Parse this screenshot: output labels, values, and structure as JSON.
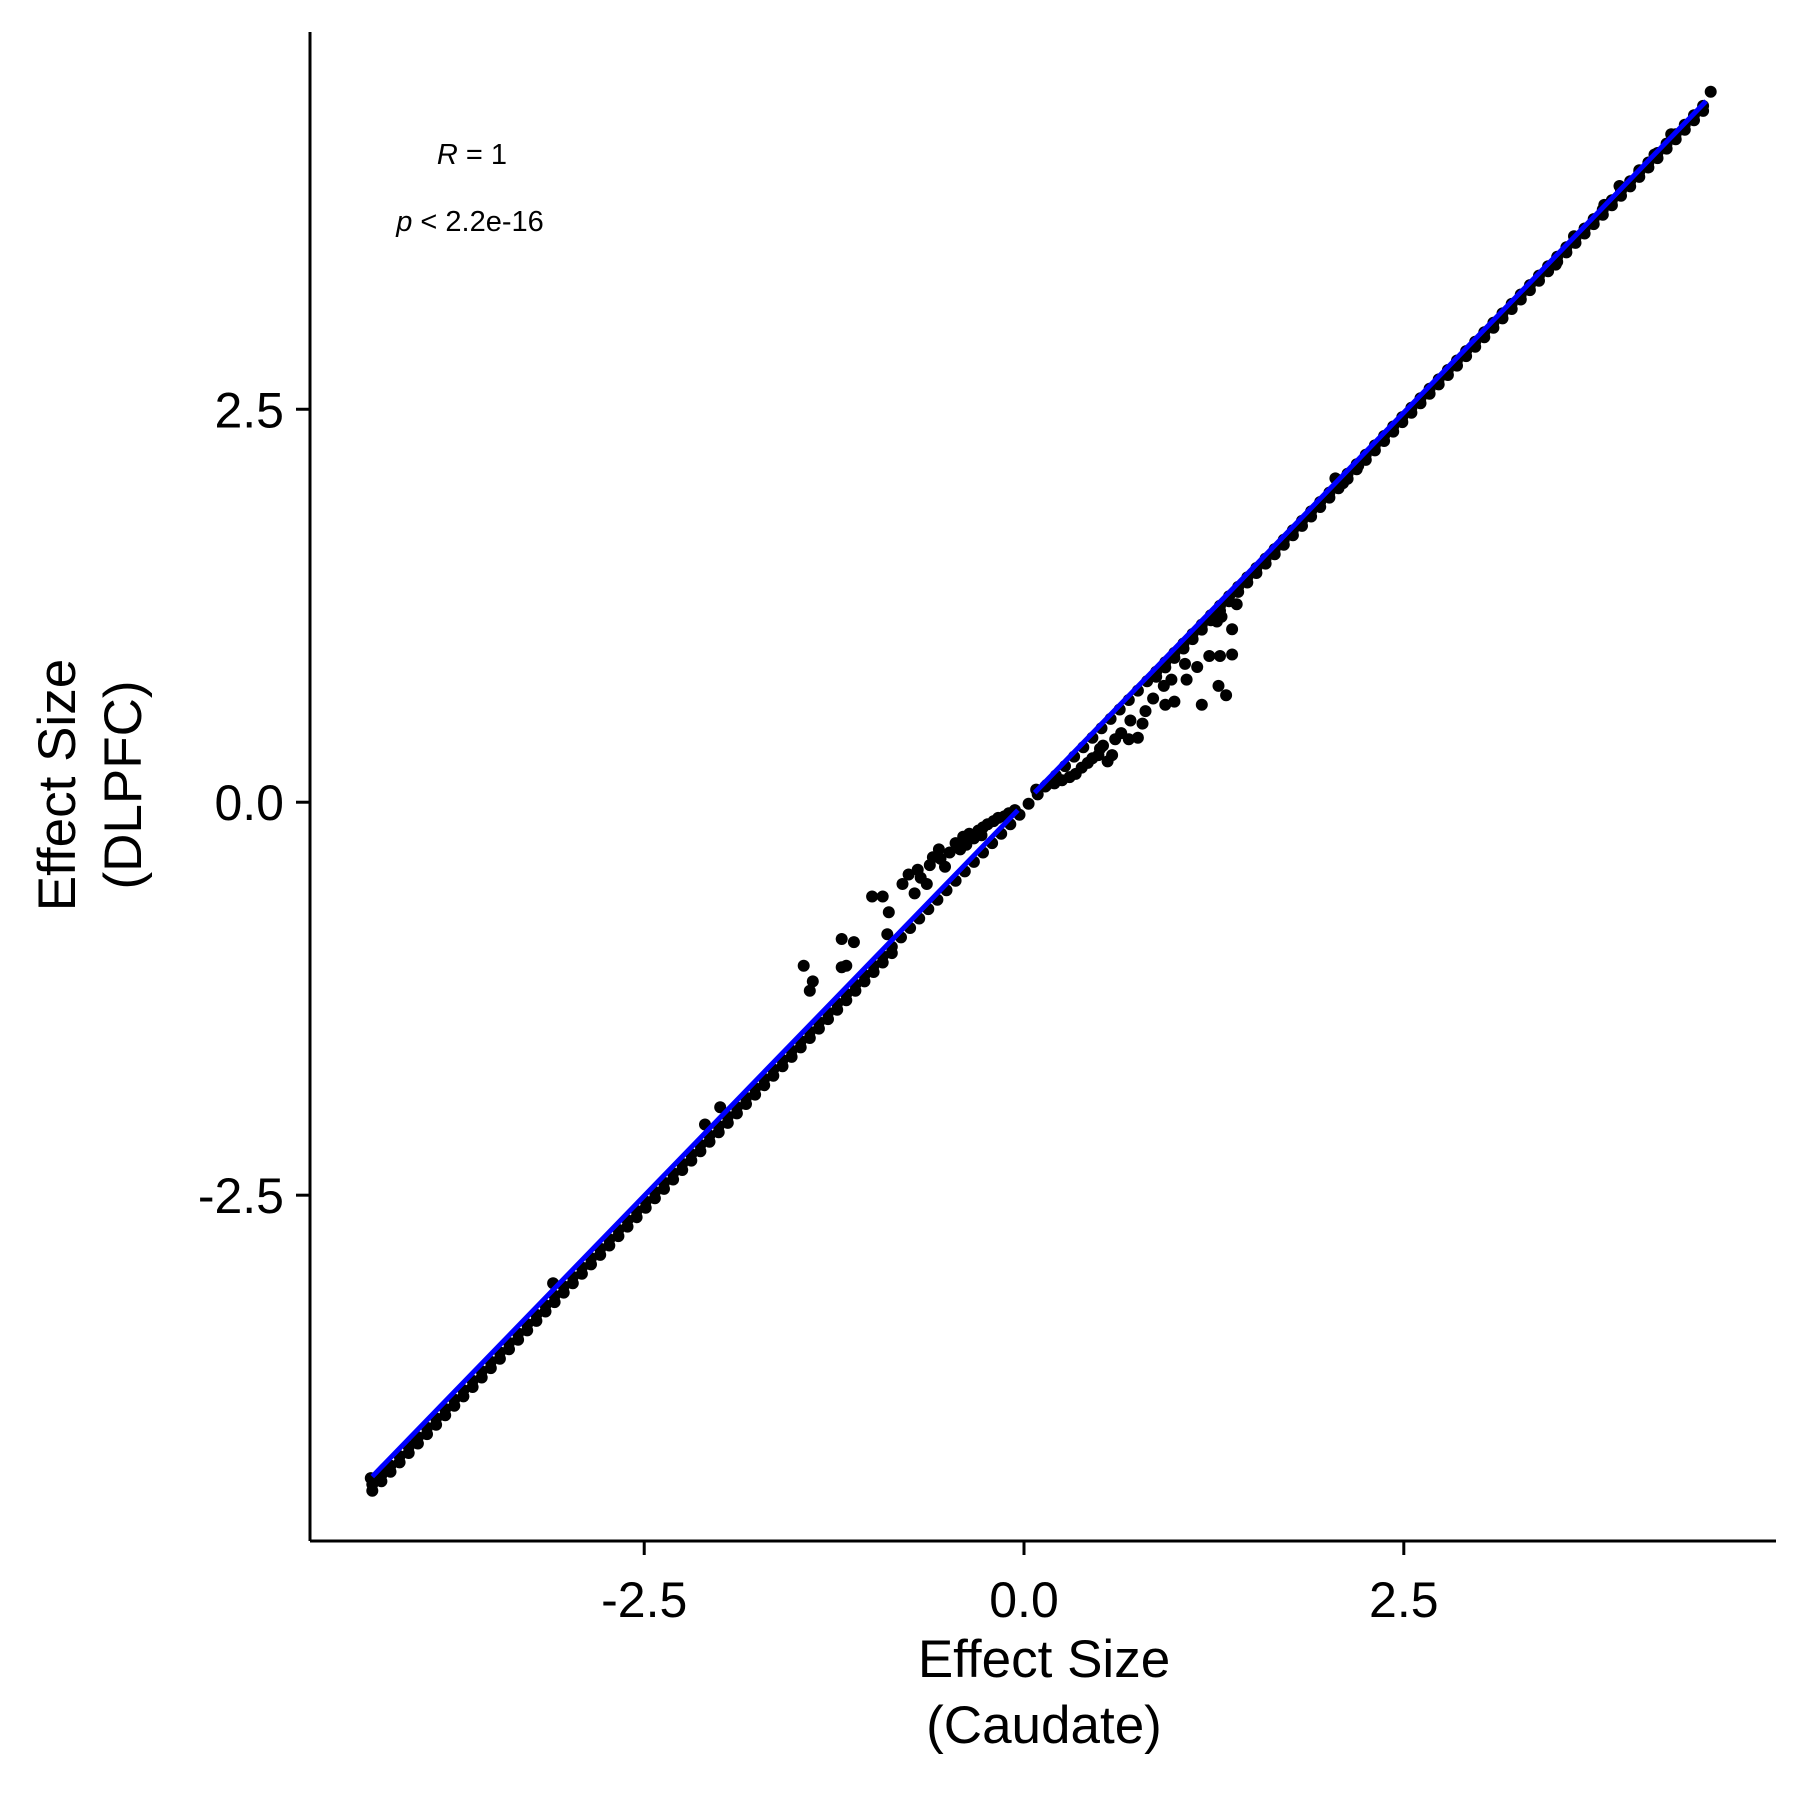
{
  "chart_data": {
    "type": "scatter",
    "xlabel_lines": [
      "Effect Size",
      "(Caudate)"
    ],
    "ylabel_lines": [
      "Effect Size",
      "(DLPFC)"
    ],
    "xlim": [
      -4.7,
      4.95
    ],
    "ylim": [
      -4.7,
      4.9
    ],
    "xticks": [
      -2.5,
      0.0,
      2.5
    ],
    "xtick_labels": [
      "-2.5",
      "0.0",
      "2.5"
    ],
    "yticks": [
      -2.5,
      0.0,
      2.5
    ],
    "ytick_labels": [
      "-2.5",
      "0.0",
      "2.5"
    ],
    "grid": false,
    "annotation": {
      "r_symbol": "R",
      "r_text": " = 1",
      "p_symbol": "p",
      "p_text": " < 2.2e-16"
    },
    "fit_line": {
      "color": "#0000ff",
      "segments": [
        {
          "x": [
            -4.29,
            -0.04
          ],
          "y": [
            -4.29,
            -0.05
          ]
        },
        {
          "x": [
            0.07,
            4.49
          ],
          "y": [
            0.06,
            4.46
          ]
        }
      ]
    },
    "main_band": {
      "x_start": -4.29,
      "x_end": 4.5,
      "step": 0.06,
      "gap": [
        -0.85,
        0.85
      ],
      "offset_below": 0.05,
      "offset_above": 0.04
    },
    "series": [
      {
        "point_color": "#000000",
        "points": [
          {
            "x": -1.45,
            "y": -1.04
          },
          {
            "x": -1.39,
            "y": -1.14
          },
          {
            "x": -1.41,
            "y": -1.2
          },
          {
            "x": -1.2,
            "y": -0.87
          },
          {
            "x": -1.12,
            "y": -0.89
          },
          {
            "x": -1.17,
            "y": -1.04
          },
          {
            "x": -1.2,
            "y": -1.05
          },
          {
            "x": -1.0,
            "y": -0.6
          },
          {
            "x": -0.93,
            "y": -0.6
          },
          {
            "x": -0.89,
            "y": -0.7
          },
          {
            "x": -0.9,
            "y": -0.84
          },
          {
            "x": -0.8,
            "y": -0.52
          },
          {
            "x": -0.76,
            "y": -0.46
          },
          {
            "x": -0.7,
            "y": -0.43
          },
          {
            "x": -0.72,
            "y": -0.58
          },
          {
            "x": -0.64,
            "y": -0.52
          },
          {
            "x": -0.6,
            "y": -0.35
          },
          {
            "x": -0.56,
            "y": -0.3
          },
          {
            "x": -0.52,
            "y": -0.41
          },
          {
            "x": -0.49,
            "y": -0.32
          },
          {
            "x": -0.45,
            "y": -0.26
          },
          {
            "x": -0.42,
            "y": -0.3
          },
          {
            "x": -0.4,
            "y": -0.22
          },
          {
            "x": -0.36,
            "y": -0.2
          },
          {
            "x": -0.33,
            "y": -0.23
          },
          {
            "x": -0.3,
            "y": -0.18
          },
          {
            "x": -0.27,
            "y": -0.16
          },
          {
            "x": -0.24,
            "y": -0.14
          },
          {
            "x": -0.2,
            "y": -0.12
          },
          {
            "x": -0.17,
            "y": -0.1
          },
          {
            "x": -0.13,
            "y": -0.09
          },
          {
            "x": -0.1,
            "y": -0.07
          },
          {
            "x": -0.06,
            "y": -0.05
          },
          {
            "x": -0.55,
            "y": -0.36
          },
          {
            "x": -0.38,
            "y": -0.27
          },
          {
            "x": -0.28,
            "y": -0.21
          },
          {
            "x": -0.68,
            "y": -0.48
          },
          {
            "x": -0.62,
            "y": -0.4
          },
          {
            "x": 0.08,
            "y": 0.08
          },
          {
            "x": 0.14,
            "y": 0.1
          },
          {
            "x": 0.2,
            "y": 0.12
          },
          {
            "x": 0.25,
            "y": 0.14
          },
          {
            "x": 0.3,
            "y": 0.16
          },
          {
            "x": 0.34,
            "y": 0.18
          },
          {
            "x": 0.38,
            "y": 0.22
          },
          {
            "x": 0.42,
            "y": 0.25
          },
          {
            "x": 0.45,
            "y": 0.28
          },
          {
            "x": 0.49,
            "y": 0.3
          },
          {
            "x": 0.52,
            "y": 0.36
          },
          {
            "x": 0.55,
            "y": 0.26
          },
          {
            "x": 0.5,
            "y": 0.34
          },
          {
            "x": 0.58,
            "y": 0.3
          },
          {
            "x": 0.6,
            "y": 0.4
          },
          {
            "x": 0.64,
            "y": 0.44
          },
          {
            "x": 0.69,
            "y": 0.4
          },
          {
            "x": 0.75,
            "y": 0.41
          },
          {
            "x": 0.7,
            "y": 0.52
          },
          {
            "x": 0.78,
            "y": 0.5
          },
          {
            "x": 0.8,
            "y": 0.58
          },
          {
            "x": 0.85,
            "y": 0.66
          },
          {
            "x": 0.92,
            "y": 0.74
          },
          {
            "x": 0.97,
            "y": 0.78
          },
          {
            "x": 1.07,
            "y": 0.78
          },
          {
            "x": 0.93,
            "y": 0.62
          },
          {
            "x": 0.99,
            "y": 0.64
          },
          {
            "x": 1.17,
            "y": 0.62
          },
          {
            "x": 1.22,
            "y": 0.93
          },
          {
            "x": 1.27,
            "y": 1.15
          },
          {
            "x": 1.3,
            "y": 1.18
          },
          {
            "x": 1.29,
            "y": 0.93
          },
          {
            "x": 1.37,
            "y": 0.94
          },
          {
            "x": 1.37,
            "y": 1.1
          },
          {
            "x": 1.4,
            "y": 1.26
          },
          {
            "x": 1.28,
            "y": 0.74
          },
          {
            "x": 1.33,
            "y": 0.68
          },
          {
            "x": 1.14,
            "y": 0.86
          },
          {
            "x": 1.06,
            "y": 0.88
          },
          {
            "x": 2.1,
            "y": 2.03
          },
          {
            "x": 2.2,
            "y": 2.14
          },
          {
            "x": 2.05,
            "y": 2.06
          },
          {
            "x": -2.0,
            "y": -1.94
          },
          {
            "x": -2.1,
            "y": -2.05
          },
          {
            "x": -3.1,
            "y": -3.06
          },
          {
            "x": -4.0,
            "y": -4.07
          },
          {
            "x": -4.22,
            "y": -4.26
          },
          {
            "x": -4.3,
            "y": -4.3
          },
          {
            "x": 4.52,
            "y": 4.52
          },
          {
            "x": 3.82,
            "y": 3.8
          },
          {
            "x": 3.92,
            "y": 3.92
          },
          {
            "x": 4.05,
            "y": 4.02
          },
          {
            "x": 4.15,
            "y": 4.12
          },
          {
            "x": 4.26,
            "y": 4.25
          },
          {
            "x": 3.5,
            "y": 3.42
          },
          {
            "x": 3.62,
            "y": 3.6
          }
        ]
      }
    ]
  }
}
